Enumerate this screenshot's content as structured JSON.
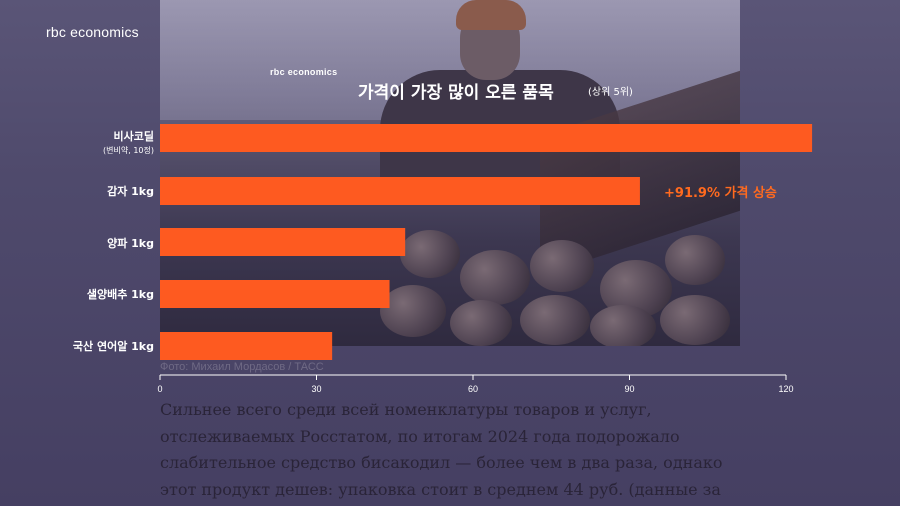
{
  "brand": "rbc economics",
  "chart_data": {
    "type": "bar",
    "orientation": "horizontal",
    "brand": "rbc economics",
    "title": "가격이 가장 많이 오른 품목",
    "subtitle": "(상위 5위)",
    "categories": [
      {
        "label": "비사코딜",
        "sub": "(변비약, 10정)"
      },
      {
        "label": "감자 1kg",
        "sub": ""
      },
      {
        "label": "양파 1kg",
        "sub": ""
      },
      {
        "label": "샐양배추 1kg",
        "sub": ""
      },
      {
        "label": "국산 연어알 1kg",
        "sub": ""
      }
    ],
    "values": [
      125,
      92,
      47,
      44,
      33
    ],
    "xlim": [
      0,
      120
    ],
    "xticks": [
      "0",
      "30",
      "60",
      "90",
      "120"
    ],
    "bar_color": "#fe5a20",
    "annotation": "+91.9% 가격 상승",
    "annotation_color": "#ff6a1f",
    "grid": false
  },
  "photo_credit": "Фото: Михаил Мордасов / ТАСС",
  "article": [
    "Сильнее всего среди всей номенклатуры товаров и услуг,",
    "отслеживаемых Росстатом, по итогам 2024 года подорожало",
    "слабительное средство бисакодил — более чем в два раза, однако",
    "этот продукт дешев: упаковка стоит в среднем 44 руб. (данные за"
  ]
}
